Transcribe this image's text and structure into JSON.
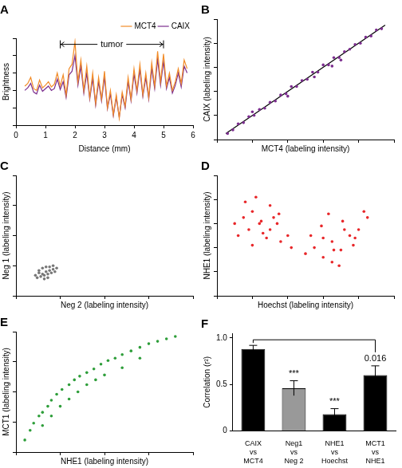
{
  "chart_data": [
    {
      "type": "line",
      "title": "A",
      "x_label": "Distance (mm)",
      "y_label": "Brightness",
      "x": [
        0.3,
        0.4,
        0.5,
        0.6,
        0.7,
        0.8,
        0.9,
        1.0,
        1.1,
        1.2,
        1.3,
        1.4,
        1.5,
        1.6,
        1.7,
        1.8,
        1.9,
        2.0,
        2.1,
        2.2,
        2.3,
        2.4,
        2.5,
        2.6,
        2.7,
        2.8,
        2.9,
        3.0,
        3.1,
        3.2,
        3.3,
        3.4,
        3.5,
        3.6,
        3.7,
        3.8,
        3.9,
        4.0,
        4.1,
        4.2,
        4.3,
        4.4,
        4.5,
        4.6,
        4.7,
        4.8,
        4.9,
        5.0,
        5.1,
        5.2,
        5.3,
        5.4,
        5.5,
        5.6,
        5.7,
        5.8
      ],
      "series": [
        {
          "name": "MCT4",
          "color": "#f28c28",
          "values": [
            4.5,
            4.8,
            5.5,
            4.2,
            4.0,
            5.2,
            4.3,
            4.6,
            5.0,
            4.4,
            4.7,
            6.0,
            4.5,
            5.8,
            3.5,
            6.5,
            7.0,
            9.6,
            5.0,
            7.5,
            4.0,
            6.8,
            3.2,
            6.0,
            2.5,
            5.5,
            3.0,
            6.2,
            2.0,
            4.0,
            1.2,
            3.5,
            0.8,
            3.8,
            2.2,
            5.5,
            3.0,
            6.5,
            4.0,
            7.0,
            3.5,
            6.0,
            3.2,
            7.2,
            4.5,
            8.5,
            5.0,
            8.2,
            4.5,
            6.0,
            4.0,
            5.0,
            6.5,
            4.8,
            7.5,
            6.5
          ]
        },
        {
          "name": "CAIX",
          "color": "#7b2d8e",
          "values": [
            4.0,
            4.3,
            4.8,
            3.8,
            3.6,
            4.6,
            3.9,
            4.2,
            4.5,
            4.0,
            4.2,
            5.3,
            4.1,
            5.0,
            3.2,
            5.8,
            6.2,
            8.0,
            4.6,
            6.8,
            3.7,
            6.0,
            3.0,
            5.4,
            2.3,
            5.0,
            2.8,
            5.6,
            1.9,
            3.6,
            1.1,
            3.2,
            0.9,
            3.5,
            2.0,
            5.0,
            2.8,
            5.9,
            3.7,
            6.4,
            3.3,
            5.5,
            3.0,
            6.5,
            4.2,
            7.6,
            4.6,
            7.4,
            4.2,
            5.5,
            3.7,
            4.6,
            6.0,
            4.4,
            6.8,
            6.0
          ]
        }
      ],
      "xlim": [
        0,
        6
      ],
      "xticks": [
        0,
        1,
        2,
        3,
        4,
        5,
        6
      ],
      "ylim": [
        0,
        10
      ],
      "yticks": [
        0,
        2,
        4,
        6,
        8,
        10
      ],
      "tick_labels": "x",
      "grid": false,
      "legend": "top-right",
      "annotations": [
        {
          "text": "tumor",
          "x": [
            1.5,
            5.0
          ],
          "y": 9.3
        }
      ]
    },
    {
      "type": "scatter",
      "title": "B",
      "x_label": "MCT4 (labeling intensity)",
      "y_label": "CAIX (labeling intensity)",
      "series": [
        {
          "color": "#7b2d8e",
          "x": [
            0.6,
            0.9,
            1.2,
            1.5,
            1.8,
            2.1,
            2.4,
            2.7,
            3.0,
            3.3,
            3.6,
            3.9,
            4.2,
            4.5,
            4.8,
            5.1,
            5.4,
            5.7,
            6.0,
            6.3,
            6.6,
            6.9,
            7.2,
            7.5,
            7.8,
            8.1,
            8.4,
            8.7,
            9.0,
            9.3,
            4.0,
            5.5,
            6.5,
            2.0,
            7.0
          ],
          "values": [
            0.5,
            0.8,
            1.3,
            1.4,
            1.9,
            2.0,
            2.5,
            2.6,
            3.1,
            3.2,
            3.7,
            3.8,
            4.4,
            4.4,
            4.9,
            5.0,
            5.6,
            5.6,
            6.2,
            6.2,
            6.8,
            6.8,
            7.3,
            7.5,
            7.9,
            8.0,
            8.5,
            8.6,
            9.1,
            9.2,
            3.6,
            5.2,
            6.1,
            2.3,
            6.6
          ]
        },
        {
          "type": "line",
          "color": "#000000",
          "x": [
            0.5,
            9.5
          ],
          "values": [
            0.5,
            9.5
          ]
        }
      ],
      "xlim": [
        0,
        10
      ],
      "xticks": [
        0,
        2,
        4,
        6,
        8,
        10
      ],
      "ylim": [
        0,
        10
      ],
      "yticks": [
        0,
        2,
        4,
        6,
        8,
        10
      ],
      "tick_labels": false,
      "grid": false
    },
    {
      "type": "scatter",
      "title": "C",
      "x_label": "Neg 2 (labeling intensity)",
      "y_label": "Neg 1 (labeling intensity)",
      "series": [
        {
          "color": "#777777",
          "x": [
            1.1,
            1.3,
            1.5,
            1.7,
            1.9,
            2.1,
            2.3,
            1.2,
            1.4,
            1.6,
            1.8,
            2.0,
            2.2,
            1.3,
            1.5,
            1.7,
            1.9,
            2.1,
            1.6,
            1.8
          ],
          "values": [
            1.7,
            1.9,
            1.8,
            2.0,
            2.1,
            2.2,
            2.3,
            1.5,
            1.6,
            1.7,
            1.8,
            1.9,
            2.0,
            2.1,
            2.3,
            2.4,
            2.4,
            2.5,
            1.4,
            1.5
          ]
        }
      ],
      "xlim": [
        0,
        10
      ],
      "xticks": [
        0,
        2.5,
        5,
        7.5,
        10
      ],
      "ylim": [
        0,
        10
      ],
      "yticks": [
        0,
        2.5,
        5,
        7.5,
        10
      ],
      "tick_labels": false,
      "grid": false
    },
    {
      "type": "scatter",
      "title": "D",
      "x_label": "Hoechst (labeling intensity)",
      "y_label": "NHE1 (labeling intensity)",
      "series": [
        {
          "color": "#e8272a",
          "x": [
            1.0,
            1.5,
            2.0,
            2.5,
            3.0,
            3.5,
            4.0,
            1.2,
            1.8,
            2.4,
            3.0,
            3.6,
            4.2,
            1.6,
            2.2,
            2.8,
            3.4,
            2.0,
            2.6,
            3.2,
            5.0,
            5.5,
            6.0,
            6.5,
            7.0,
            7.5,
            8.0,
            8.5,
            5.3,
            5.9,
            6.5,
            7.1,
            7.7,
            8.3,
            6.0,
            6.6,
            7.2,
            7.8,
            6.3,
            6.9
          ],
          "values": [
            6.0,
            6.5,
            7.0,
            6.2,
            5.5,
            6.8,
            5.0,
            5.0,
            5.5,
            6.0,
            7.5,
            4.5,
            4.0,
            7.8,
            8.2,
            4.8,
            6.0,
            4.2,
            5.2,
            6.5,
            3.5,
            4.0,
            3.2,
            4.5,
            3.8,
            5.0,
            5.5,
            6.5,
            5.0,
            5.8,
            2.8,
            6.2,
            4.2,
            7.0,
            4.8,
            3.8,
            5.5,
            4.8,
            6.8,
            2.5
          ]
        }
      ],
      "xlim": [
        0,
        10
      ],
      "xticks": [
        0,
        2,
        4,
        6,
        8,
        10
      ],
      "ylim": [
        0,
        10
      ],
      "yticks": [
        0,
        2,
        4,
        6,
        8,
        10
      ],
      "tick_labels": false,
      "grid": false
    },
    {
      "type": "scatter",
      "title": "E",
      "x_label": "NHE1 (labeling intensity)",
      "y_label": "MCT1 (labeling intensity)",
      "series": [
        {
          "color": "#2e9e3a",
          "x": [
            0.5,
            0.8,
            1.0,
            1.3,
            1.5,
            1.8,
            2.0,
            2.3,
            2.6,
            3.0,
            3.3,
            3.6,
            4.0,
            4.4,
            4.8,
            5.2,
            5.6,
            6.0,
            6.5,
            7.0,
            7.5,
            8.0,
            8.5,
            9.0,
            1.5,
            2.0,
            2.5,
            3.0,
            3.5,
            4.0,
            4.5,
            5.0,
            6.0,
            7.0
          ],
          "values": [
            1.0,
            1.8,
            2.4,
            3.0,
            3.3,
            3.8,
            4.3,
            4.8,
            5.2,
            5.6,
            6.0,
            6.3,
            6.6,
            6.9,
            7.3,
            7.6,
            7.8,
            8.1,
            8.4,
            8.7,
            9.0,
            9.2,
            9.4,
            9.6,
            2.2,
            3.0,
            3.8,
            4.4,
            5.0,
            5.6,
            6.0,
            6.4,
            7.0,
            7.8
          ]
        }
      ],
      "xlim": [
        0,
        10
      ],
      "xticks": [
        0,
        2.5,
        5,
        7.5,
        10
      ],
      "ylim": [
        0,
        10
      ],
      "yticks": [
        0,
        2.5,
        5,
        7.5,
        10
      ],
      "tick_labels": false,
      "grid": false
    },
    {
      "type": "bar",
      "title": "F",
      "y_label": "Correlation (r²)",
      "categories": [
        [
          "CAIX",
          "vs",
          "MCT4"
        ],
        [
          "Neg1",
          "vs",
          "Neg 2"
        ],
        [
          "NHE1",
          "vs",
          "Hoechst"
        ],
        [
          "MCT1",
          "vs",
          "NHE1"
        ]
      ],
      "values": [
        0.88,
        0.46,
        0.18,
        0.6
      ],
      "errors": [
        0.04,
        0.08,
        0.06,
        0.1
      ],
      "colors": [
        "#000000",
        "#999999",
        "#000000",
        "#000000"
      ],
      "ylim": [
        0,
        1.05
      ],
      "yticks": [
        0,
        0.5,
        {
          "value": 1,
          "label": "1.0"
        }
      ],
      "grid": false,
      "annotations": [
        {
          "text": "***",
          "category": 1
        },
        {
          "text": "***",
          "category": 2
        },
        {
          "text": "0.016",
          "category": 3
        }
      ],
      "bracket": {
        "from": 0,
        "to": 3,
        "y": 0.98
      }
    }
  ]
}
